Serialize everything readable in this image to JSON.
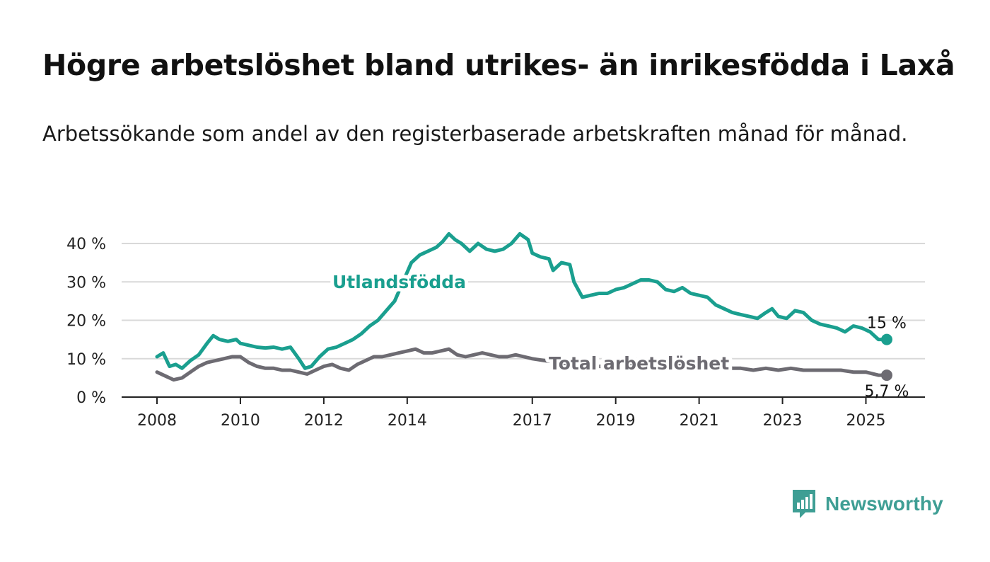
{
  "title": "Högre arbetslöshet bland utrikes- än inrikesfödda i Laxå",
  "subtitle": "Arbetssökande som andel av den registerbaserade arbetskraften månad för månad.",
  "brand": {
    "name": "Newsworthy",
    "icon": "newsworthy-logo-icon",
    "color": "#3e9e94"
  },
  "chart_data": {
    "type": "line",
    "title": "",
    "xlabel": "",
    "ylabel": "",
    "ylim": [
      0,
      40
    ],
    "xlim": [
      2008,
      2025.5
    ],
    "y_ticks": [
      0,
      10,
      20,
      30,
      40
    ],
    "y_tick_labels": [
      "0 %",
      "10 %",
      "20 %",
      "30 %",
      "40 %"
    ],
    "x_ticks": [
      2008,
      2010,
      2012,
      2014,
      2017,
      2019,
      2021,
      2023,
      2025
    ],
    "x_tick_labels": [
      "2008",
      "2010",
      "2012",
      "2014",
      "2017",
      "2019",
      "2021",
      "2023",
      "2025"
    ],
    "grid": "horizontal",
    "series": [
      {
        "name": "Utlandsfödda",
        "color": "#1a9f8f",
        "end_label": "15 %",
        "points": [
          [
            2008.0,
            10.5
          ],
          [
            2008.15,
            11.5
          ],
          [
            2008.3,
            8.0
          ],
          [
            2008.45,
            8.5
          ],
          [
            2008.6,
            7.5
          ],
          [
            2008.8,
            9.5
          ],
          [
            2009.0,
            11.0
          ],
          [
            2009.2,
            14.0
          ],
          [
            2009.35,
            16.0
          ],
          [
            2009.5,
            15.0
          ],
          [
            2009.7,
            14.5
          ],
          [
            2009.9,
            15.0
          ],
          [
            2010.0,
            14.0
          ],
          [
            2010.2,
            13.5
          ],
          [
            2010.4,
            13.0
          ],
          [
            2010.6,
            12.8
          ],
          [
            2010.8,
            13.0
          ],
          [
            2011.0,
            12.5
          ],
          [
            2011.2,
            13.0
          ],
          [
            2011.4,
            10.0
          ],
          [
            2011.55,
            7.5
          ],
          [
            2011.7,
            8.0
          ],
          [
            2011.9,
            10.5
          ],
          [
            2012.1,
            12.5
          ],
          [
            2012.3,
            13.0
          ],
          [
            2012.5,
            14.0
          ],
          [
            2012.7,
            15.0
          ],
          [
            2012.9,
            16.5
          ],
          [
            2013.1,
            18.5
          ],
          [
            2013.3,
            20.0
          ],
          [
            2013.5,
            22.5
          ],
          [
            2013.7,
            25.0
          ],
          [
            2013.9,
            30.0
          ],
          [
            2014.1,
            35.0
          ],
          [
            2014.3,
            37.0
          ],
          [
            2014.5,
            38.0
          ],
          [
            2014.7,
            39.0
          ],
          [
            2014.85,
            40.5
          ],
          [
            2015.0,
            42.5
          ],
          [
            2015.15,
            41.0
          ],
          [
            2015.3,
            40.0
          ],
          [
            2015.5,
            38.0
          ],
          [
            2015.7,
            40.0
          ],
          [
            2015.9,
            38.5
          ],
          [
            2016.1,
            38.0
          ],
          [
            2016.3,
            38.5
          ],
          [
            2016.5,
            40.0
          ],
          [
            2016.7,
            42.5
          ],
          [
            2016.9,
            41.0
          ],
          [
            2017.0,
            37.5
          ],
          [
            2017.2,
            36.5
          ],
          [
            2017.4,
            36.0
          ],
          [
            2017.5,
            33.0
          ],
          [
            2017.7,
            35.0
          ],
          [
            2017.9,
            34.5
          ],
          [
            2018.0,
            30.0
          ],
          [
            2018.2,
            26.0
          ],
          [
            2018.4,
            26.5
          ],
          [
            2018.6,
            27.0
          ],
          [
            2018.8,
            27.0
          ],
          [
            2019.0,
            28.0
          ],
          [
            2019.2,
            28.5
          ],
          [
            2019.4,
            29.5
          ],
          [
            2019.6,
            30.5
          ],
          [
            2019.8,
            30.5
          ],
          [
            2020.0,
            30.0
          ],
          [
            2020.2,
            28.0
          ],
          [
            2020.4,
            27.5
          ],
          [
            2020.6,
            28.5
          ],
          [
            2020.8,
            27.0
          ],
          [
            2021.0,
            26.5
          ],
          [
            2021.2,
            26.0
          ],
          [
            2021.4,
            24.0
          ],
          [
            2021.6,
            23.0
          ],
          [
            2021.8,
            22.0
          ],
          [
            2022.0,
            21.5
          ],
          [
            2022.2,
            21.0
          ],
          [
            2022.4,
            20.5
          ],
          [
            2022.6,
            22.0
          ],
          [
            2022.75,
            23.0
          ],
          [
            2022.9,
            21.0
          ],
          [
            2023.1,
            20.5
          ],
          [
            2023.3,
            22.5
          ],
          [
            2023.5,
            22.0
          ],
          [
            2023.7,
            20.0
          ],
          [
            2023.9,
            19.0
          ],
          [
            2024.1,
            18.5
          ],
          [
            2024.3,
            18.0
          ],
          [
            2024.5,
            17.0
          ],
          [
            2024.7,
            18.5
          ],
          [
            2024.9,
            18.0
          ],
          [
            2025.1,
            17.0
          ],
          [
            2025.3,
            15.0
          ],
          [
            2025.5,
            15.0
          ]
        ]
      },
      {
        "name": "Total arbetslöshet",
        "color": "#6d6b72",
        "end_label": "5,7 %",
        "points": [
          [
            2008.0,
            6.5
          ],
          [
            2008.2,
            5.5
          ],
          [
            2008.4,
            4.5
          ],
          [
            2008.6,
            5.0
          ],
          [
            2008.8,
            6.5
          ],
          [
            2009.0,
            8.0
          ],
          [
            2009.2,
            9.0
          ],
          [
            2009.4,
            9.5
          ],
          [
            2009.6,
            10.0
          ],
          [
            2009.8,
            10.5
          ],
          [
            2010.0,
            10.5
          ],
          [
            2010.2,
            9.0
          ],
          [
            2010.4,
            8.0
          ],
          [
            2010.6,
            7.5
          ],
          [
            2010.8,
            7.5
          ],
          [
            2011.0,
            7.0
          ],
          [
            2011.2,
            7.0
          ],
          [
            2011.4,
            6.5
          ],
          [
            2011.6,
            6.0
          ],
          [
            2011.8,
            7.0
          ],
          [
            2012.0,
            8.0
          ],
          [
            2012.2,
            8.5
          ],
          [
            2012.4,
            7.5
          ],
          [
            2012.6,
            7.0
          ],
          [
            2012.8,
            8.5
          ],
          [
            2013.0,
            9.5
          ],
          [
            2013.2,
            10.5
          ],
          [
            2013.4,
            10.5
          ],
          [
            2013.6,
            11.0
          ],
          [
            2013.8,
            11.5
          ],
          [
            2014.0,
            12.0
          ],
          [
            2014.2,
            12.5
          ],
          [
            2014.4,
            11.5
          ],
          [
            2014.6,
            11.5
          ],
          [
            2014.8,
            12.0
          ],
          [
            2015.0,
            12.5
          ],
          [
            2015.2,
            11.0
          ],
          [
            2015.4,
            10.5
          ],
          [
            2015.6,
            11.0
          ],
          [
            2015.8,
            11.5
          ],
          [
            2016.0,
            11.0
          ],
          [
            2016.2,
            10.5
          ],
          [
            2016.4,
            10.5
          ],
          [
            2016.6,
            11.0
          ],
          [
            2016.8,
            10.5
          ],
          [
            2017.0,
            10.0
          ],
          [
            2017.3,
            9.5
          ],
          [
            2017.6,
            9.0
          ],
          [
            2018.0,
            8.5
          ],
          [
            2018.4,
            8.0
          ],
          [
            2018.8,
            8.0
          ],
          [
            2019.2,
            8.0
          ],
          [
            2019.6,
            8.5
          ],
          [
            2020.0,
            9.0
          ],
          [
            2020.4,
            8.5
          ],
          [
            2020.8,
            8.0
          ],
          [
            2021.2,
            8.0
          ],
          [
            2021.6,
            7.5
          ],
          [
            2022.0,
            7.5
          ],
          [
            2022.3,
            7.0
          ],
          [
            2022.6,
            7.5
          ],
          [
            2022.9,
            7.0
          ],
          [
            2023.2,
            7.5
          ],
          [
            2023.5,
            7.0
          ],
          [
            2023.8,
            7.0
          ],
          [
            2024.1,
            7.0
          ],
          [
            2024.4,
            7.0
          ],
          [
            2024.7,
            6.5
          ],
          [
            2025.0,
            6.5
          ],
          [
            2025.3,
            5.7
          ],
          [
            2025.5,
            5.7
          ]
        ]
      }
    ],
    "annotations": [
      "Utlandsfödda",
      "Total arbetslöshet"
    ]
  }
}
